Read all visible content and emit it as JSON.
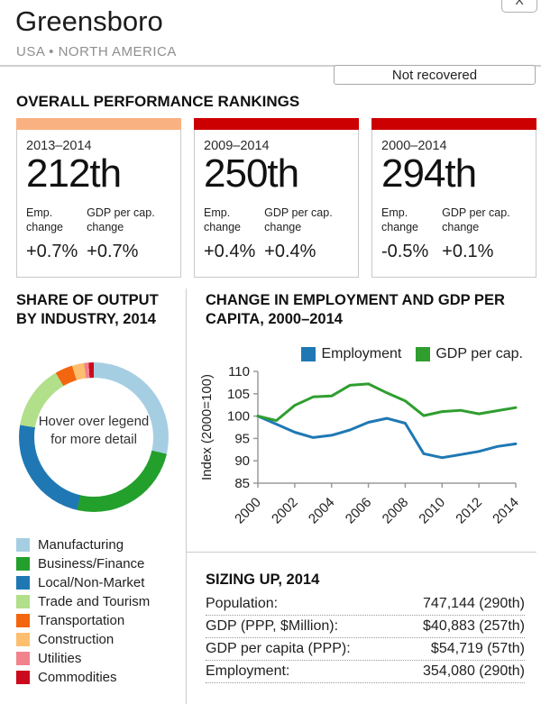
{
  "window": {
    "close_label": "X"
  },
  "header": {
    "title": "Greensboro",
    "subtitle": "USA • NORTH AMERICA",
    "status_label": "Not recovered"
  },
  "rankings": {
    "heading": "OVERALL PERFORMANCE RANKINGS",
    "labels": {
      "emp": "Emp. change",
      "gdp": "GDP per cap. change"
    },
    "cards": [
      {
        "period": "2013–2014",
        "rank": "212th",
        "emp_change": "+0.7%",
        "gdp_change": "+0.7%",
        "bar_color": "#f9b181"
      },
      {
        "period": "2009–2014",
        "rank": "250th",
        "emp_change": "+0.4%",
        "gdp_change": "+0.4%",
        "bar_color": "#cc0000"
      },
      {
        "period": "2000–2014",
        "rank": "294th",
        "emp_change": "-0.5%",
        "gdp_change": "+0.1%",
        "bar_color": "#cc0000"
      }
    ]
  },
  "industry": {
    "heading": "SHARE OF OUTPUT BY INDUSTRY, 2014",
    "center_line1": "Hover over legend",
    "center_line2": "for more detail"
  },
  "employment_chart": {
    "heading": "CHANGE IN EMPLOYMENT AND GDP PER CAPITA, 2000–2014"
  },
  "sizing": {
    "heading": "SIZING UP, 2014",
    "rows": [
      {
        "label": "Population:",
        "value": "747,144 (290th)"
      },
      {
        "label": "GDP (PPP, $Million):",
        "value": "$40,883 (257th)"
      },
      {
        "label": "GDP per capita (PPP):",
        "value": "$54,719 (57th)"
      },
      {
        "label": "Employment:",
        "value": "354,080 (290th)"
      }
    ]
  },
  "chart_data": [
    {
      "type": "pie",
      "title": "SHARE OF OUTPUT BY INDUSTRY, 2014",
      "categories": [
        "Manufacturing",
        "Business/Finance",
        "Local/Non-Market",
        "Trade and Tourism",
        "Transportation",
        "Construction",
        "Utilities",
        "Commodities"
      ],
      "values": [
        28.6,
        25.0,
        24.0,
        13.9,
        3.8,
        2.6,
        1.0,
        1.1
      ],
      "colors": [
        "#a6cee3",
        "#23a02c",
        "#1f78b4",
        "#b2df8a",
        "#f3650e",
        "#fdbf6f",
        "#f1838d",
        "#cc0a1e"
      ],
      "donut": true,
      "start_angle_deg": 0,
      "center_text": "Hover over legend for more detail",
      "legend_position": "bottom-left"
    },
    {
      "type": "line",
      "title": "CHANGE IN EMPLOYMENT AND GDP PER CAPITA, 2000–2014",
      "x": [
        2000,
        2001,
        2002,
        2003,
        2004,
        2005,
        2006,
        2007,
        2008,
        2009,
        2010,
        2011,
        2012,
        2013,
        2014
      ],
      "series": [
        {
          "name": "Employment",
          "color": "#1f78b4",
          "values": [
            100,
            98.2,
            96.4,
            95.2,
            95.7,
            96.9,
            98.6,
            99.5,
            98.4,
            91.6,
            90.7,
            91.4,
            92.1,
            93.2,
            93.8
          ]
        },
        {
          "name": "GDP per cap.",
          "color": "#2f9e2f",
          "values": [
            100,
            99.0,
            102.4,
            104.3,
            104.5,
            106.9,
            107.2,
            105.2,
            103.4,
            100.1,
            101.0,
            101.3,
            100.5,
            101.2,
            101.9
          ]
        }
      ],
      "ylabel": "Index (2000=100)",
      "ylim": [
        85,
        110
      ],
      "yticks": [
        85,
        90,
        95,
        100,
        105,
        110
      ],
      "xticks": [
        2000,
        2002,
        2004,
        2006,
        2008,
        2010,
        2012,
        2014
      ],
      "grid": false,
      "legend_position": "top-right"
    }
  ]
}
